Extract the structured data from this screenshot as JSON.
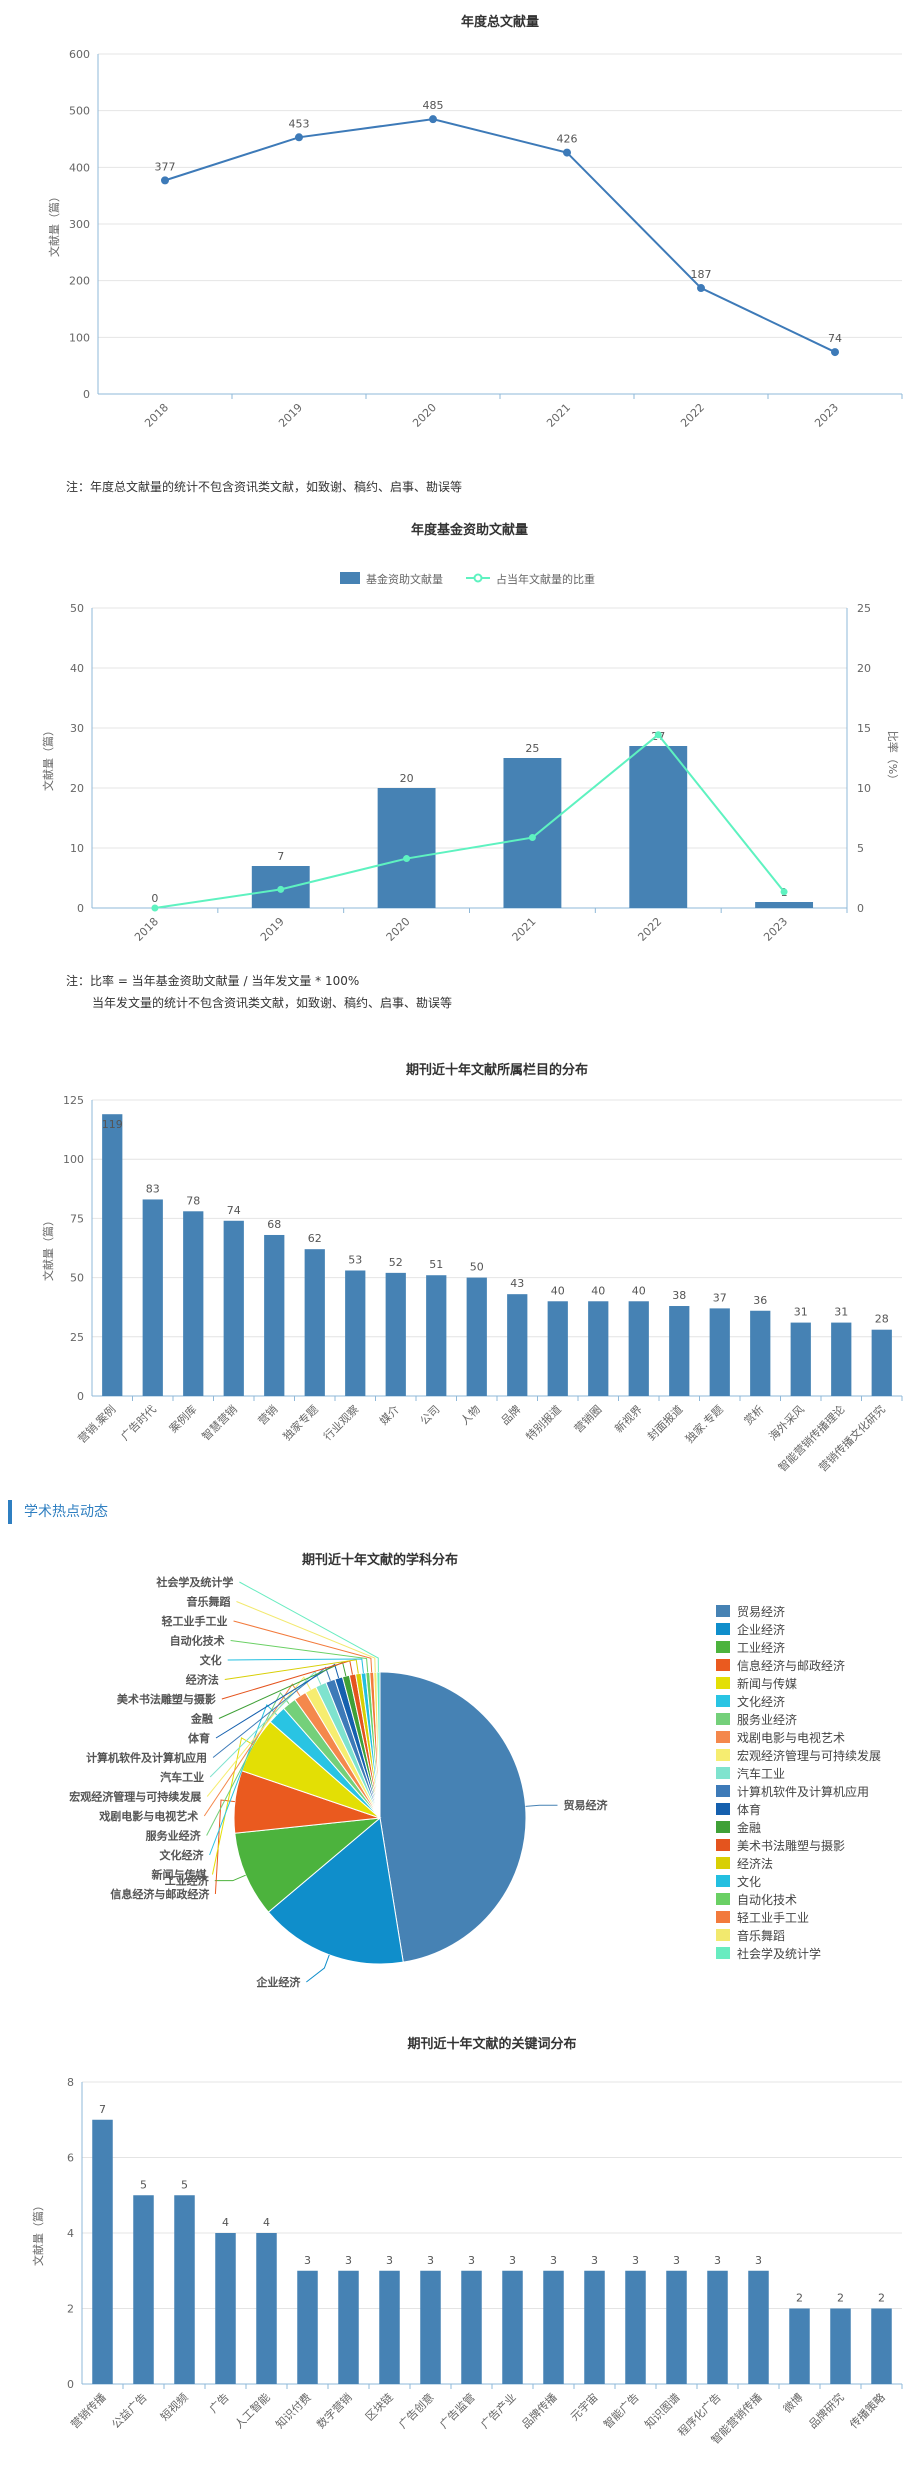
{
  "chart_data": [
    {
      "type": "line",
      "title": "年度总文献量",
      "ylabel": "文献量（篇）",
      "x": [
        "2018",
        "2019",
        "2020",
        "2021",
        "2022",
        "2023"
      ],
      "values": [
        377,
        453,
        485,
        426,
        187,
        74
      ],
      "ylim": [
        0,
        600
      ],
      "yticks": [
        0,
        100,
        200,
        300,
        400,
        500,
        600
      ],
      "grid": true,
      "color": "#3d7ab8"
    },
    {
      "type": "bar",
      "title": "年度基金资助文献量",
      "ylabel": "文献量（篇）",
      "y2label": "比率（%）",
      "categories": [
        "2018",
        "2019",
        "2020",
        "2021",
        "2022",
        "2023"
      ],
      "series": [
        {
          "name": "基金资助文献量",
          "type": "bar",
          "values": [
            0,
            7,
            20,
            25,
            27,
            1
          ],
          "color": "#4682b4"
        },
        {
          "name": "占当年文献量的比重",
          "type": "line",
          "axis": "right",
          "values": [
            0,
            1.55,
            4.12,
            5.87,
            14.44,
            1.35
          ],
          "color": "#5ef2c0"
        }
      ],
      "ylim": [
        0,
        50
      ],
      "yticks": [
        0,
        10,
        20,
        30,
        40,
        50
      ],
      "y2lim": [
        0,
        25
      ],
      "y2ticks": [
        0,
        5,
        10,
        15,
        20,
        25
      ],
      "legend": "top-center",
      "grid": true
    },
    {
      "type": "bar",
      "title": "期刊近十年文献所属栏目的分布",
      "ylabel": "文献量（篇）",
      "categories": [
        "营销.案例",
        "广告时代",
        "案例库",
        "智慧营销",
        "营销",
        "独家专题",
        "行业观察",
        "媒介",
        "公司",
        "人物",
        "品牌",
        "特别报道",
        "营销圈",
        "新视界",
        "封面报道",
        "独家.专题",
        "赏析",
        "海外采风",
        "智能营销传播理论",
        "营销传播文化研究"
      ],
      "values": [
        119,
        83,
        78,
        74,
        68,
        62,
        53,
        52,
        51,
        50,
        43,
        40,
        40,
        40,
        38,
        37,
        36,
        31,
        31,
        28
      ],
      "ylim": [
        0,
        125
      ],
      "yticks": [
        0,
        25,
        50,
        75,
        100,
        125
      ],
      "grid": true,
      "color": "#4682b4"
    },
    {
      "type": "pie",
      "title": "期刊近十年文献的学科分布",
      "labels": [
        "贸易经济",
        "企业经济",
        "工业经济",
        "信息经济与邮政经济",
        "新闻与传媒",
        "文化经济",
        "服务业经济",
        "戏剧电影与电视艺术",
        "宏观经济管理与可持续发展",
        "汽车工业",
        "计算机软件及计算机应用",
        "体育",
        "金融",
        "美术书法雕塑与摄影",
        "经济法",
        "文化",
        "自动化技术",
        "轻工业手工业",
        "音乐舞蹈",
        "社会学及统计学"
      ],
      "values": [
        550,
        190,
        110,
        80,
        72,
        24,
        18,
        16,
        15,
        14,
        12,
        10,
        9,
        8,
        7,
        6,
        5,
        5,
        4,
        4
      ],
      "colors": [
        "#4682b4",
        "#0f8ecb",
        "#4cb33d",
        "#ea5a1f",
        "#e3df05",
        "#29c4e3",
        "#74d07a",
        "#f4884c",
        "#f6ed70",
        "#7fe3ce",
        "#3d7ab8",
        "#1560ae",
        "#3fa037",
        "#e4541e",
        "#d8cf04",
        "#23bfe0",
        "#6ad064",
        "#f27a3c",
        "#f2e96e",
        "#68ecc0"
      ],
      "legend": "right",
      "legend_title": "学术热点动态"
    },
    {
      "type": "bar",
      "title": "期刊近十年文献的关键词分布",
      "ylabel": "文献量（篇）",
      "categories": [
        "营销传播",
        "公益广告",
        "短视频",
        "广告",
        "人工智能",
        "知识付费",
        "数字营销",
        "区块链",
        "广告创意",
        "广告监管",
        "广告产业",
        "品牌传播",
        "元宇宙",
        "智能广告",
        "知识图谱",
        "程序化广告",
        "智能营销传播",
        "微博",
        "品牌研究",
        "传播策略"
      ],
      "values": [
        7,
        5,
        5,
        4,
        4,
        3,
        3,
        3,
        3,
        3,
        3,
        3,
        3,
        3,
        3,
        3,
        3,
        2,
        2,
        2
      ],
      "ylim": [
        0,
        8
      ],
      "yticks": [
        0,
        2,
        4,
        6,
        8
      ],
      "grid": true,
      "color": "#4682b4"
    }
  ],
  "notes": {
    "annual_note": "注：年度总文献量的统计不包含资讯类文献，如致谢、稿约、启事、勘误等",
    "fund_note_1": "注：比率 = 当年基金资助文献量 / 当年发文量 * 100%",
    "fund_note_2": "当年发文量的统计不包含资讯类文献，如致谢、稿约、启事、勘误等"
  },
  "section": {
    "title": "学术热点动态"
  }
}
